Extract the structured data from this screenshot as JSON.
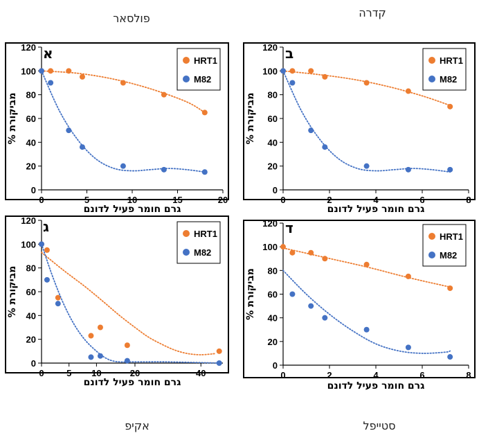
{
  "chart_data": [
    {
      "type": "scatter",
      "panel_letter": "א",
      "chemical_name": "פולסאר",
      "xlabel": "גרם חומר פעיל לדונם",
      "ylabel": "% מביקורת",
      "xlim": [
        0,
        20
      ],
      "ylim": [
        0,
        120
      ],
      "xticks": [
        0,
        5,
        10,
        15,
        20
      ],
      "yticks": [
        0,
        20,
        40,
        60,
        80,
        100,
        120
      ],
      "legend_position": "top-right",
      "series": [
        {
          "name": "HRT1",
          "color": "#ED7D31",
          "x": [
            0,
            1,
            3,
            4.5,
            9,
            13.5,
            18
          ],
          "y": [
            100,
            100,
            100,
            95,
            90,
            80,
            65
          ],
          "trend_x": [
            0,
            4,
            8,
            12,
            16,
            18
          ],
          "trend_y": [
            100,
            98,
            93,
            85,
            74,
            65
          ]
        },
        {
          "name": "M82",
          "color": "#4472C4",
          "x": [
            0,
            1,
            3,
            4.5,
            9,
            13.5,
            18
          ],
          "y": [
            100,
            90,
            50,
            36,
            20,
            17,
            15
          ],
          "trend_x": [
            0,
            2,
            4,
            6,
            8,
            10,
            12,
            14,
            16,
            18
          ],
          "trend_y": [
            100,
            66,
            42,
            26,
            18,
            16,
            17,
            18,
            17,
            15
          ]
        }
      ]
    },
    {
      "type": "scatter",
      "panel_letter": "ב",
      "chemical_name": "קדרה",
      "xlabel": "גרם חומר פעיל לדונם",
      "ylabel": "% מביקורת",
      "xlim": [
        0,
        8
      ],
      "ylim": [
        0,
        120
      ],
      "xticks": [
        0,
        2,
        4,
        6,
        8
      ],
      "yticks": [
        0,
        20,
        40,
        60,
        80,
        100,
        120
      ],
      "legend_position": "top-right",
      "series": [
        {
          "name": "HRT1",
          "color": "#ED7D31",
          "x": [
            0,
            0.4,
            1.2,
            1.8,
            3.6,
            5.4,
            7.2
          ],
          "y": [
            100,
            100,
            100,
            95,
            90,
            83,
            70
          ],
          "trend_x": [
            0,
            1.5,
            3,
            4.5,
            6,
            7.2
          ],
          "trend_y": [
            100,
            97,
            93,
            87,
            79,
            71
          ]
        },
        {
          "name": "M82",
          "color": "#4472C4",
          "x": [
            0,
            0.4,
            1.2,
            1.8,
            3.6,
            5.4,
            7.2
          ],
          "y": [
            100,
            90,
            50,
            36,
            20,
            17,
            17
          ],
          "trend_x": [
            0,
            0.8,
            1.6,
            2.4,
            3.2,
            4,
            4.8,
            5.6,
            6.4,
            7.2
          ],
          "trend_y": [
            100,
            66,
            42,
            26,
            18,
            16,
            17,
            18,
            17,
            15
          ]
        }
      ]
    },
    {
      "type": "scatter",
      "panel_letter": "ג",
      "chemical_name": "אקיפ",
      "xlabel": "גרם חומר פעיל לדונם",
      "ylabel": "% מביקורת",
      "xlim": [
        0,
        46
      ],
      "ylim": [
        0,
        120
      ],
      "xticks": [
        0,
        5,
        10,
        20,
        40
      ],
      "x_tick_display_positions": [
        0,
        5,
        10,
        17,
        29
      ],
      "yticks": [
        0,
        20,
        40,
        60,
        80,
        100,
        120
      ],
      "legend_position": "top-right",
      "series": [
        {
          "name": "HRT1",
          "color": "#ED7D31",
          "x": [
            0,
            1,
            3,
            9,
            11,
            18,
            45
          ],
          "y": [
            100,
            95,
            55,
            23,
            30,
            15,
            10
          ],
          "trend_x": [
            0,
            4,
            8,
            12,
            16,
            20,
            24,
            28,
            32,
            36,
            40,
            44
          ],
          "trend_y": [
            93,
            78,
            64,
            51,
            40,
            30,
            22,
            16,
            11,
            8,
            7,
            8
          ]
        },
        {
          "name": "M82",
          "color": "#4472C4",
          "x": [
            0,
            1,
            3,
            9,
            11,
            18,
            45
          ],
          "y": [
            100,
            70,
            50,
            5,
            6,
            2,
            0
          ],
          "trend_x": [
            0,
            2,
            4,
            6,
            8,
            10,
            12,
            14,
            16,
            18,
            22,
            30,
            45
          ],
          "trend_y": [
            100,
            73,
            50,
            32,
            19,
            10,
            5,
            2,
            1,
            1,
            1,
            1,
            0
          ]
        }
      ]
    },
    {
      "type": "scatter",
      "panel_letter": "ד",
      "chemical_name": "סטייפל",
      "xlabel": "גרם חומר פעיל לדונם",
      "ylabel": "% מביקורת",
      "xlim": [
        0,
        8
      ],
      "ylim": [
        0,
        120
      ],
      "xticks": [
        0,
        2,
        4,
        6,
        8
      ],
      "yticks": [
        0,
        20,
        40,
        60,
        80,
        100,
        120
      ],
      "legend_position": "top-right",
      "series": [
        {
          "name": "HRT1",
          "color": "#ED7D31",
          "x": [
            0,
            0.4,
            1.2,
            1.8,
            3.6,
            5.4,
            7.2
          ],
          "y": [
            100,
            95,
            95,
            90,
            85,
            75,
            65
          ],
          "trend_x": [
            0,
            1.8,
            3.6,
            5.4,
            7.2
          ],
          "trend_y": [
            99,
            91,
            83,
            74,
            66
          ]
        },
        {
          "name": "M82",
          "color": "#4472C4",
          "x": [
            0.4,
            1.2,
            1.8,
            3.6,
            5.4,
            7.2
          ],
          "y": [
            60,
            50,
            40,
            30,
            15,
            7
          ],
          "trend_x": [
            0,
            1,
            2,
            3,
            4,
            5,
            6,
            7,
            7.2
          ],
          "trend_y": [
            80,
            60,
            43,
            29,
            18,
            12,
            10,
            11,
            12
          ]
        }
      ]
    }
  ]
}
